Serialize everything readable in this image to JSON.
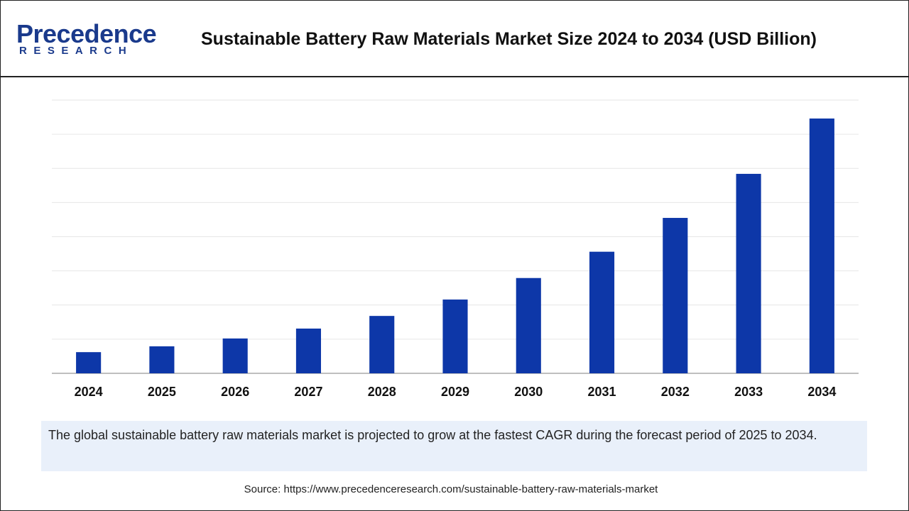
{
  "logo": {
    "name": "Precedence",
    "sub": "RESEARCH"
  },
  "chart_data": {
    "type": "bar",
    "title": "Sustainable Battery Raw Materials Market Size 2024 to 2034 (USD Billion)",
    "categories": [
      "2024",
      "2025",
      "2026",
      "2027",
      "2028",
      "2029",
      "2030",
      "2031",
      "2032",
      "2033",
      "2034"
    ],
    "values": [
      0.62,
      0.79,
      1.02,
      1.31,
      1.68,
      2.16,
      2.79,
      3.56,
      4.55,
      5.84,
      7.46
    ],
    "color": "#0d37a8",
    "ylim": [
      0,
      8
    ],
    "yticks": [
      0,
      1,
      2,
      3,
      4,
      5,
      6,
      7,
      8
    ],
    "grid": true,
    "show_tick_labels": false
  },
  "note": "The global sustainable battery raw materials market is projected to grow at the fastest CAGR during the forecast period of 2025 to 2034.",
  "source": "Source: https://www.precedenceresearch.com/sustainable-battery-raw-materials-market"
}
